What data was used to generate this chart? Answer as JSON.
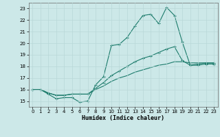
{
  "xlabel": "Humidex (Indice chaleur)",
  "background_color": "#cce8e8",
  "grid_color": "#b8d8d8",
  "line_color": "#1a7a6a",
  "xlim": [
    -0.5,
    23.5
  ],
  "ylim": [
    14.5,
    23.5
  ],
  "xticks": [
    0,
    1,
    2,
    3,
    4,
    5,
    6,
    7,
    8,
    9,
    10,
    11,
    12,
    13,
    14,
    15,
    16,
    17,
    18,
    19,
    20,
    21,
    22,
    23
  ],
  "yticks": [
    15,
    16,
    17,
    18,
    19,
    20,
    21,
    22,
    23
  ],
  "line1_x": [
    0,
    1,
    2,
    3,
    4,
    5,
    6,
    7,
    8,
    9,
    10,
    11,
    12,
    13,
    14,
    15,
    16,
    17,
    18,
    19,
    20,
    21,
    22,
    23
  ],
  "line1_y": [
    16.0,
    16.0,
    15.6,
    15.2,
    15.3,
    15.3,
    14.9,
    15.0,
    16.4,
    17.1,
    19.8,
    19.9,
    20.5,
    21.5,
    22.4,
    22.5,
    21.7,
    23.1,
    22.4,
    20.1,
    18.1,
    18.1,
    18.2,
    18.2
  ],
  "line2_x": [
    0,
    1,
    2,
    3,
    4,
    5,
    6,
    7,
    8,
    9,
    10,
    11,
    12,
    13,
    14,
    15,
    16,
    17,
    18,
    19,
    20,
    21,
    22,
    23
  ],
  "line2_y": [
    16.0,
    16.0,
    15.7,
    15.5,
    15.5,
    15.6,
    15.6,
    15.6,
    16.1,
    16.6,
    17.2,
    17.6,
    18.0,
    18.4,
    18.7,
    18.9,
    19.2,
    19.5,
    19.7,
    18.5,
    18.1,
    18.2,
    18.3,
    18.3
  ],
  "line3_x": [
    0,
    1,
    2,
    3,
    4,
    5,
    6,
    7,
    8,
    9,
    10,
    11,
    12,
    13,
    14,
    15,
    16,
    17,
    18,
    19,
    20,
    21,
    22,
    23
  ],
  "line3_y": [
    16.0,
    16.0,
    15.7,
    15.5,
    15.5,
    15.6,
    15.6,
    15.6,
    16.0,
    16.3,
    16.7,
    17.0,
    17.2,
    17.5,
    17.7,
    17.9,
    18.1,
    18.2,
    18.4,
    18.4,
    18.3,
    18.3,
    18.3,
    18.3
  ],
  "xlabel_fontsize": 6,
  "tick_fontsize": 5
}
